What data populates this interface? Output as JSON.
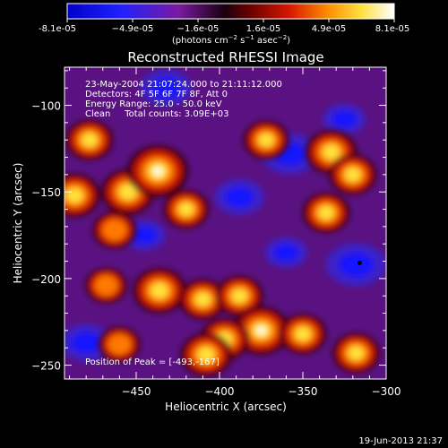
{
  "colorbar": {
    "ticks": [
      "-8.1e-05",
      "−4.9e-05",
      "−1.6e-05",
      "1.6e-05",
      "4.9e-05",
      "8.1e-05"
    ],
    "units_prefix": "(photons cm",
    "units_exp1": "−2",
    "units_mid": " s",
    "units_exp2": "−1",
    "units_mid2": " asec",
    "units_exp3": "−2",
    "units_suffix": ")"
  },
  "chart_data": {
    "type": "heatmap",
    "title": "Reconstructed RHESSI Image",
    "xlabel": "Heliocentric X (arcsec)",
    "ylabel": "Heliocentric Y (arcsec)",
    "xlim": [
      -493,
      -300
    ],
    "ylim": [
      -258,
      -78
    ],
    "xticks": [
      -450,
      -400,
      -350,
      -300
    ],
    "yticks": [
      -100,
      -150,
      -200,
      -250
    ],
    "xtick_labels": [
      "−450",
      "−400",
      "−350",
      "−300"
    ],
    "ytick_labels": [
      "−100",
      "−150",
      "−200",
      "−250"
    ],
    "colorbar_range": [
      -8.1e-05,
      8.1e-05
    ],
    "colormap": "blue-purple-red-yellow-white",
    "annotations": [
      "23-May-2004 21:07:24.000 to 21:11:12.000",
      "Detectors: 4F 5F 6F 7F 8F, Att 0",
      "Energy Range: 25.0 - 50.0 keV",
      "Clean     Total counts: 3.09E+03"
    ],
    "peak_label": "Position of Peak = [-493,-167]",
    "peak_position": [
      -493,
      -167
    ],
    "hot_regions": [
      {
        "x": -478,
        "y": -120,
        "level": 0.6
      },
      {
        "x": -487,
        "y": -152,
        "level": 0.7
      },
      {
        "x": -455,
        "y": -150,
        "level": 0.75
      },
      {
        "x": -437,
        "y": -138,
        "level": 0.95
      },
      {
        "x": -420,
        "y": -160,
        "level": 0.55
      },
      {
        "x": -463,
        "y": -172,
        "level": 0.5
      },
      {
        "x": -372,
        "y": -120,
        "level": 0.55
      },
      {
        "x": -333,
        "y": -127,
        "level": 0.7
      },
      {
        "x": -320,
        "y": -140,
        "level": 0.6
      },
      {
        "x": -336,
        "y": -162,
        "level": 0.6
      },
      {
        "x": -436,
        "y": -207,
        "level": 0.75
      },
      {
        "x": -410,
        "y": -212,
        "level": 0.6
      },
      {
        "x": -388,
        "y": -210,
        "level": 0.6
      },
      {
        "x": -375,
        "y": -230,
        "level": 0.85
      },
      {
        "x": -397,
        "y": -235,
        "level": 0.65
      },
      {
        "x": -408,
        "y": -244,
        "level": 0.7
      },
      {
        "x": -350,
        "y": -232,
        "level": 0.6
      },
      {
        "x": -318,
        "y": -243,
        "level": 0.6
      },
      {
        "x": -460,
        "y": -238,
        "level": 0.45
      },
      {
        "x": -468,
        "y": -204,
        "level": 0.45
      }
    ],
    "cold_regions": [
      {
        "x": -432,
        "y": -90,
        "level": 0.6
      },
      {
        "x": -358,
        "y": -128,
        "level": 0.75
      },
      {
        "x": -388,
        "y": -153,
        "level": 0.55
      },
      {
        "x": -318,
        "y": -192,
        "level": 0.85
      },
      {
        "x": -480,
        "y": -237,
        "level": 0.6
      },
      {
        "x": -445,
        "y": -175,
        "level": 0.35
      },
      {
        "x": -325,
        "y": -108,
        "level": 0.35
      },
      {
        "x": -360,
        "y": -185,
        "level": 0.35
      }
    ]
  },
  "footer": {
    "date": "19-Jun-2013 21:37"
  }
}
